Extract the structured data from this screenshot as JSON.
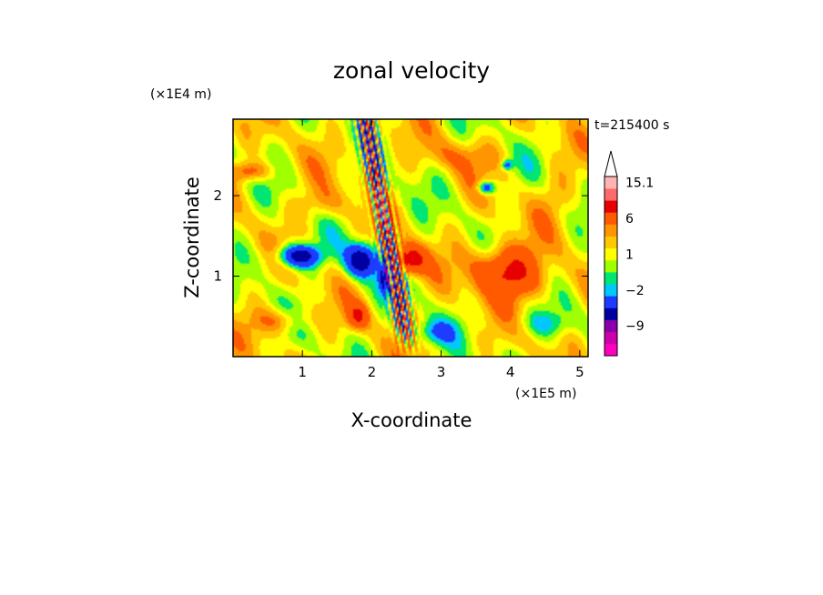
{
  "chart_data": {
    "type": "heatmap",
    "title": "zonal velocity",
    "xlabel": "X-coordinate",
    "ylabel": "Z-coordinate",
    "x_unit": "(×1E5 m)",
    "y_unit": "(×1E4 m)",
    "time_label": "t=215400 s",
    "xlim": [
      0,
      5.12
    ],
    "ylim": [
      0,
      2.95
    ],
    "x_ticks": [
      1,
      2,
      3,
      4,
      5
    ],
    "y_ticks": [
      1,
      2
    ],
    "colorbar": {
      "levels": [
        -15,
        -12,
        -9,
        -6,
        -3,
        -2,
        -1,
        0,
        1,
        2,
        3,
        6,
        9,
        12,
        15.1
      ],
      "colors": [
        "#ff00c0",
        "#cc00aa",
        "#8800aa",
        "#0000a0",
        "#1e3cff",
        "#00c8ff",
        "#00e673",
        "#a0ff00",
        "#ffff00",
        "#ffc800",
        "#ff9600",
        "#ff5a00",
        "#e60000",
        "#ff6a6a",
        "#ffb4b4"
      ],
      "overflow_color": "#ffffff",
      "tick_labels": [
        "15.1",
        "6",
        "1",
        "−2",
        "−9"
      ],
      "tick_values": [
        15.1,
        6,
        1,
        -2,
        -9
      ]
    },
    "field_features": [
      {
        "x": 0.95,
        "z": 1.25,
        "sx": 0.3,
        "sz": 0.14,
        "amp": -9
      },
      {
        "x": 1.85,
        "z": 1.2,
        "sx": 0.22,
        "sz": 0.2,
        "amp": -9
      },
      {
        "x": 2.2,
        "z": 1.0,
        "sx": 0.1,
        "sz": 0.2,
        "amp": -8
      },
      {
        "x": 2.55,
        "z": 1.2,
        "sx": 0.22,
        "sz": 0.18,
        "amp": 7
      },
      {
        "x": 3.9,
        "z": 1.1,
        "sx": 0.45,
        "sz": 0.3,
        "amp": 6
      },
      {
        "x": 3.65,
        "z": 2.1,
        "sx": 0.12,
        "sz": 0.08,
        "amp": -6
      },
      {
        "x": 3.95,
        "z": 2.38,
        "sx": 0.08,
        "sz": 0.06,
        "amp": -5
      },
      {
        "x": 0.25,
        "z": 2.3,
        "sx": 0.3,
        "sz": 0.12,
        "amp": 4
      },
      {
        "x": 0.7,
        "z": 0.45,
        "sx": 0.35,
        "sz": 0.15,
        "amp": 3
      },
      {
        "x": 1.8,
        "z": 0.5,
        "sx": 0.15,
        "sz": 0.15,
        "amp": 5
      },
      {
        "x": 4.2,
        "z": 0.9,
        "sx": 0.55,
        "sz": 0.25,
        "amp": 2
      },
      {
        "x": 4.6,
        "z": 2.0,
        "sx": 0.3,
        "sz": 0.3,
        "amp": 1.5
      },
      {
        "x": 2.9,
        "z": 0.3,
        "sx": 0.3,
        "sz": 0.15,
        "amp": -3
      },
      {
        "x": 1.3,
        "z": 1.9,
        "sx": 0.4,
        "sz": 0.2,
        "amp": 2
      },
      {
        "x": 4.5,
        "z": 0.4,
        "sx": 0.4,
        "sz": 0.15,
        "amp": -2
      },
      {
        "x": 3.3,
        "z": 2.5,
        "sx": 0.5,
        "sz": 0.2,
        "amp": 2
      }
    ]
  }
}
